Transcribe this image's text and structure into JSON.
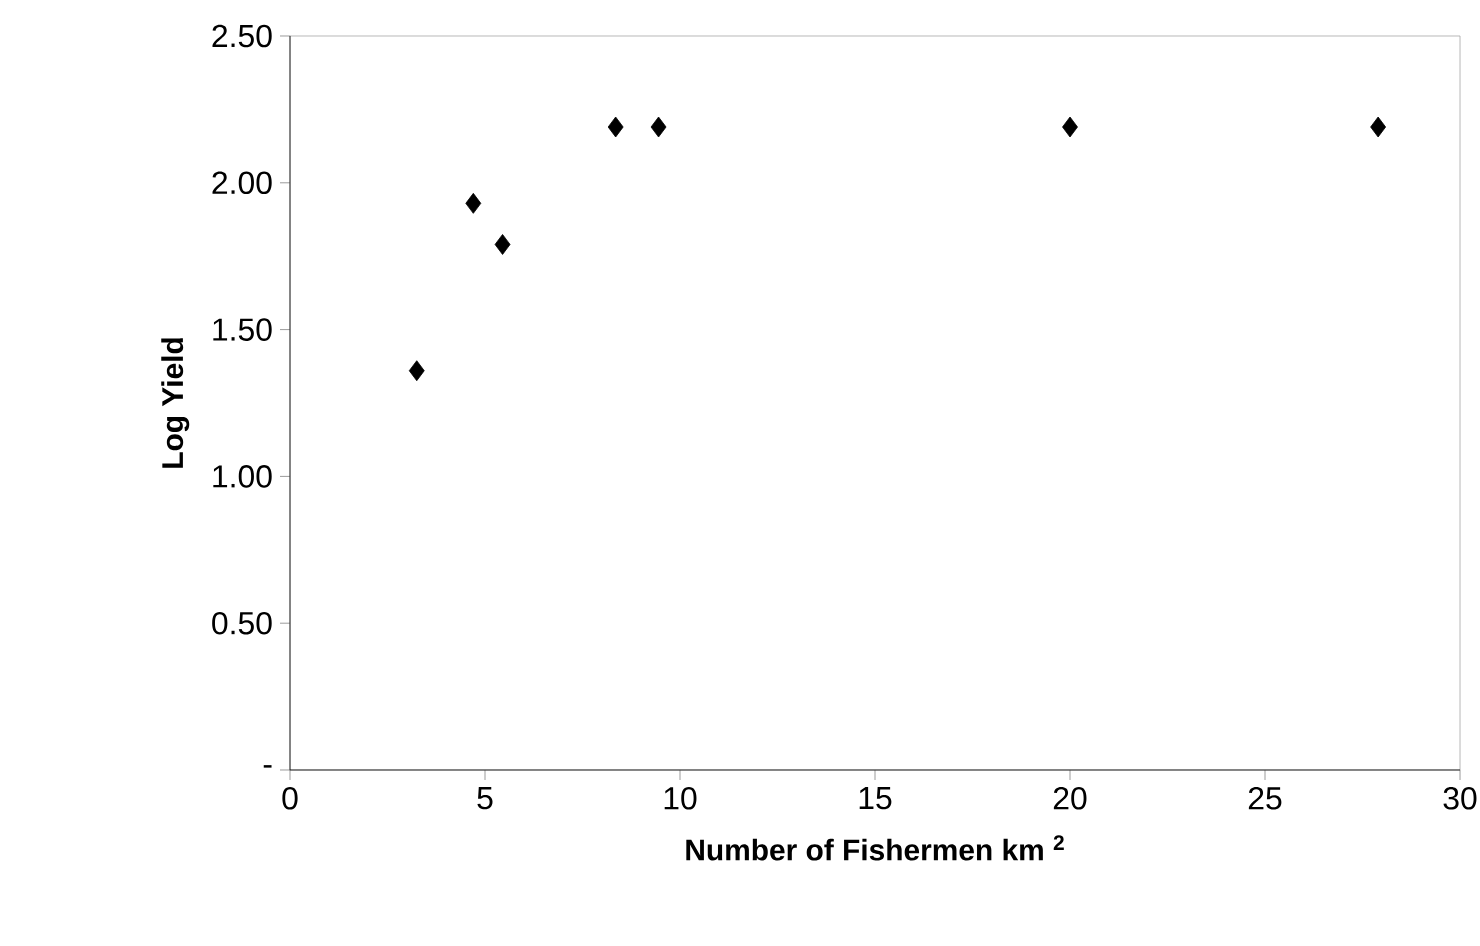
{
  "chart_data": {
    "type": "scatter",
    "xlabel": "Number of Fishermen km $^{2}$",
    "ylabel": "Log Yield",
    "x": [
      3.25,
      4.7,
      5.45,
      8.35,
      9.45,
      20,
      27.9
    ],
    "series": [
      {
        "color": "#000000",
        "values": [
          1.36,
          1.93,
          1.79,
          2.19,
          2.19,
          2.19,
          2.19
        ]
      }
    ],
    "marker": "diamond",
    "grid": false,
    "legend": false,
    "xlim": [
      0,
      30
    ],
    "xticks": [
      0,
      5,
      10,
      15,
      20,
      25,
      30
    ],
    "ylim": [
      0,
      2.5
    ],
    "yticks": [
      {
        "value": 0,
        "label": "-"
      },
      {
        "value": 0.5,
        "label": "0.50"
      },
      {
        "value": 1,
        "label": "1.00"
      },
      {
        "value": 1.5,
        "label": "1.50"
      },
      {
        "value": 2,
        "label": "2.00"
      },
      {
        "value": 2.5,
        "label": "2.50"
      }
    ]
  }
}
